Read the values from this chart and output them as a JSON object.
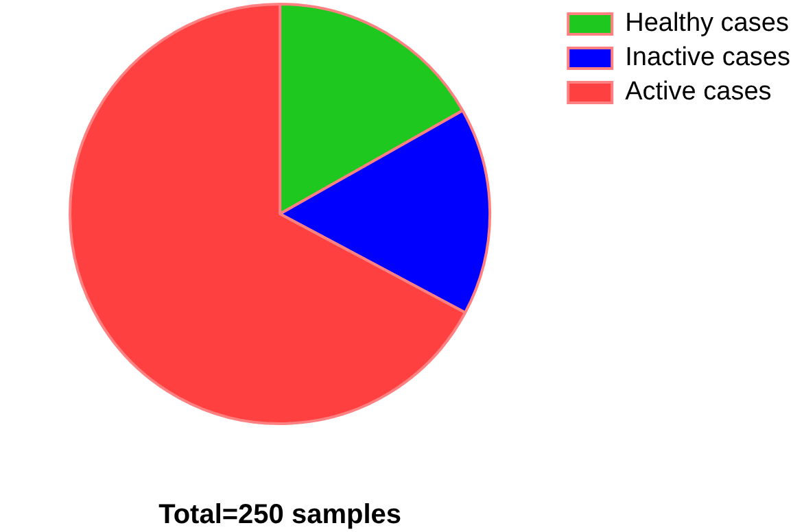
{
  "chart_data": {
    "type": "pie",
    "categories": [
      "Healthy cases",
      "Inactive cases",
      "Active cases"
    ],
    "values": [
      16.8,
      16,
      67.2
    ],
    "colors": [
      "#1ec81e",
      "#0000ff",
      "#ff4040"
    ],
    "legend": "top right",
    "annotations": [
      "Total=250 samples"
    ]
  }
}
